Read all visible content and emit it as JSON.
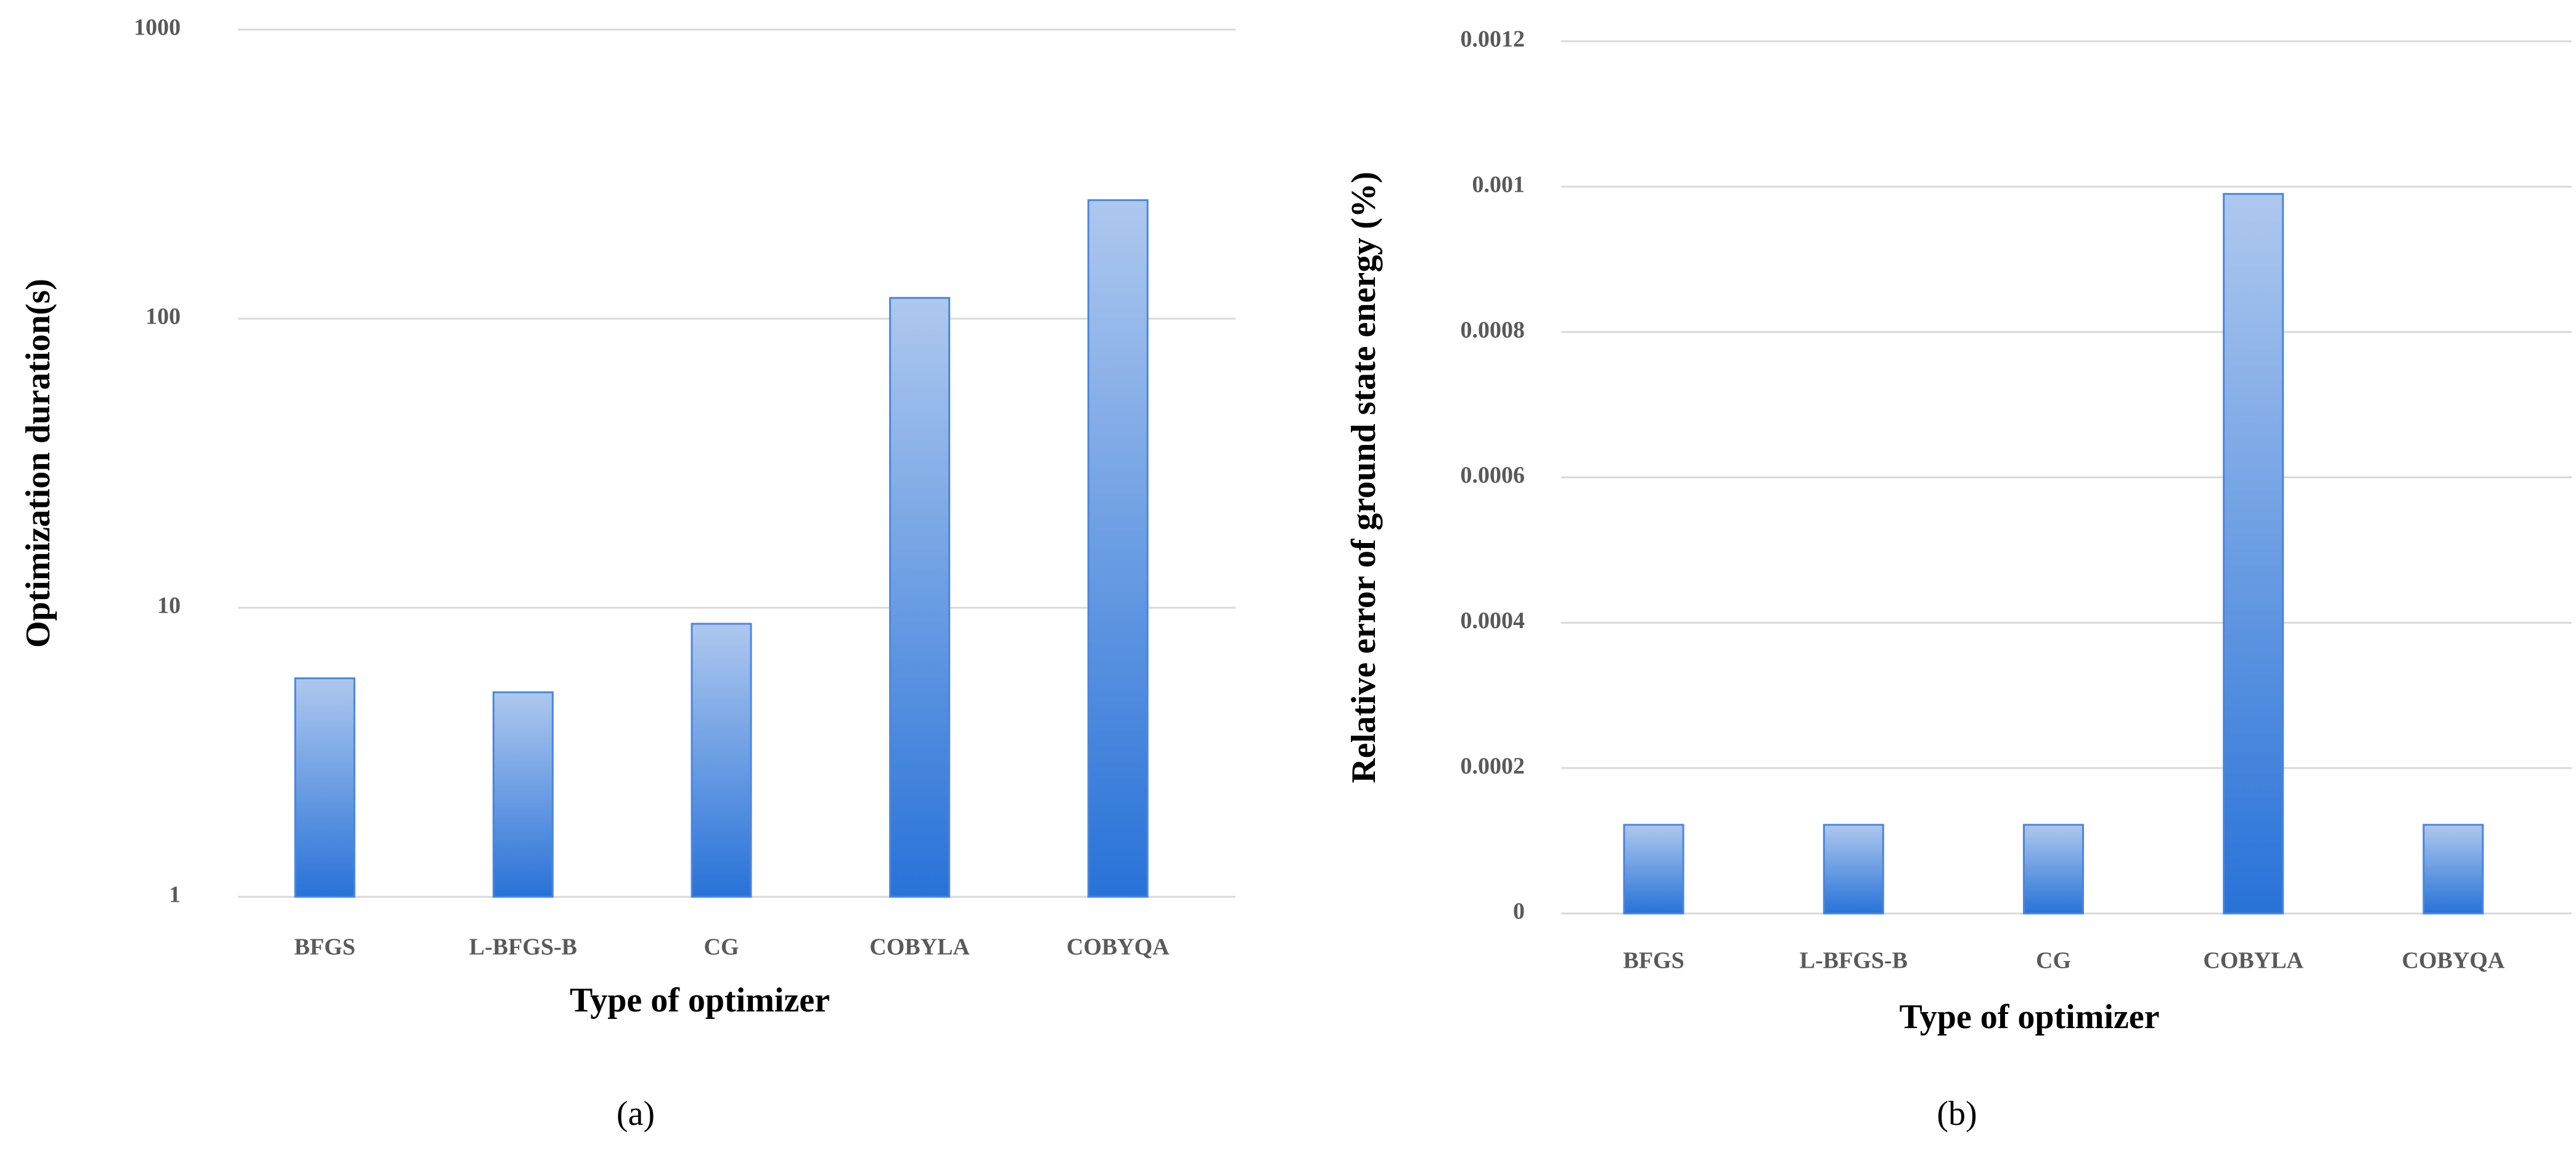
{
  "chart_data": [
    {
      "type": "bar",
      "caption": "(a)",
      "xlabel": "Type of optimizer",
      "ylabel": "Optimization duration(s)",
      "categories": [
        "BFGS",
        "L-BFGS-B",
        "CG",
        "COBYLA",
        "COBYQA"
      ],
      "values": [
        5.7,
        5.1,
        8.8,
        118,
        257
      ],
      "color": "#2872d8",
      "log_scale": true,
      "ylim": [
        1,
        1000
      ],
      "yticks": [
        1,
        10,
        100,
        1000
      ],
      "grid": true
    },
    {
      "type": "bar",
      "caption": "(b)",
      "xlabel": "Type of optimizer",
      "ylabel": "Relative error of ground state energy  (%)",
      "categories": [
        "BFGS",
        "L-BFGS-B",
        "CG",
        "COBYLA",
        "COBYQA"
      ],
      "values": [
        0.000122,
        0.000122,
        0.000122,
        0.00099,
        0.000122
      ],
      "color": "#2872d8",
      "log_scale": false,
      "ylim": [
        0,
        0.0012
      ],
      "yticks": [
        0,
        0.0002,
        0.0004,
        0.0006,
        0.0008,
        0.001,
        0.0012
      ],
      "grid": true
    }
  ]
}
